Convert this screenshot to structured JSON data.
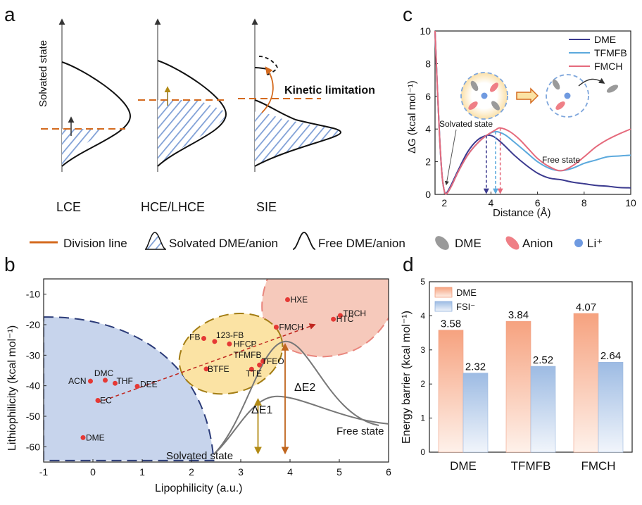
{
  "panel_labels": {
    "a": "a",
    "b": "b",
    "c": "c",
    "d": "d"
  },
  "panel_a": {
    "y_title": "Solvated state",
    "kinetic": "Kinetic limitation",
    "labels": [
      "LCE",
      "HCE/LHCE",
      "SIE"
    ]
  },
  "legend": {
    "division": "Division line",
    "solvated": "Solvated DME/anion",
    "free": "Free DME/anion",
    "dme": "DME",
    "anion": "Anion",
    "li": "Li⁺"
  },
  "colors": {
    "orange": "#d46a1e",
    "dme_line": "#3b3a8f",
    "tfmfb_line": "#5ba9dd",
    "fmch_line": "#e56a7c",
    "blue_region": "#c7d4ec",
    "yellow_region": "#fbe3a4",
    "pink_region": "#f6c9bb",
    "red_point": "#e53935"
  },
  "chart_data": [
    {
      "type": "line",
      "id": "c",
      "xlabel": "Distance (Å)",
      "ylabel": "ΔG (kcal mol⁻¹)",
      "xlim": [
        1.6,
        10
      ],
      "ylim": [
        0,
        10
      ],
      "xticks": [
        2,
        4,
        6,
        8,
        10
      ],
      "yticks": [
        0,
        2,
        4,
        6,
        8,
        10
      ],
      "annotations": {
        "solvated": "Solvated state",
        "free": "Free state"
      },
      "series": [
        {
          "name": "DME",
          "points": [
            [
              1.6,
              10
            ],
            [
              1.7,
              6.5
            ],
            [
              1.8,
              3.4
            ],
            [
              1.9,
              1.2
            ],
            [
              2.0,
              0.2
            ],
            [
              2.1,
              0.1
            ],
            [
              2.3,
              0.6
            ],
            [
              2.6,
              1.5
            ],
            [
              3.0,
              2.6
            ],
            [
              3.4,
              3.3
            ],
            [
              3.8,
              3.6
            ],
            [
              4.1,
              3.55
            ],
            [
              4.5,
              3.1
            ],
            [
              5.0,
              2.4
            ],
            [
              5.5,
              1.8
            ],
            [
              6.0,
              1.3
            ],
            [
              6.5,
              1.0
            ],
            [
              7.0,
              0.9
            ],
            [
              7.5,
              0.75
            ],
            [
              8.0,
              0.65
            ],
            [
              8.5,
              0.55
            ],
            [
              9.0,
              0.5
            ],
            [
              9.5,
              0.42
            ],
            [
              10,
              0.4
            ]
          ]
        },
        {
          "name": "TFMFB",
          "points": [
            [
              1.6,
              10
            ],
            [
              1.7,
              6.5
            ],
            [
              1.8,
              3.4
            ],
            [
              1.9,
              1.2
            ],
            [
              2.0,
              0.2
            ],
            [
              2.1,
              0.05
            ],
            [
              2.3,
              0.5
            ],
            [
              2.6,
              1.4
            ],
            [
              3.0,
              2.4
            ],
            [
              3.4,
              3.1
            ],
            [
              3.8,
              3.6
            ],
            [
              4.2,
              3.84
            ],
            [
              4.6,
              3.65
            ],
            [
              5.0,
              3.2
            ],
            [
              5.5,
              2.6
            ],
            [
              6.0,
              2.0
            ],
            [
              6.5,
              1.6
            ],
            [
              7.0,
              1.45
            ],
            [
              7.5,
              1.6
            ],
            [
              8.0,
              1.9
            ],
            [
              8.5,
              2.1
            ],
            [
              9.0,
              2.3
            ],
            [
              9.5,
              2.35
            ],
            [
              10,
              2.4
            ]
          ]
        },
        {
          "name": "FMCH",
          "points": [
            [
              1.6,
              10
            ],
            [
              1.7,
              6.5
            ],
            [
              1.8,
              3.4
            ],
            [
              1.9,
              1.2
            ],
            [
              2.0,
              0.2
            ],
            [
              2.1,
              0.05
            ],
            [
              2.3,
              0.5
            ],
            [
              2.6,
              1.4
            ],
            [
              3.0,
              2.4
            ],
            [
              3.4,
              3.1
            ],
            [
              3.8,
              3.6
            ],
            [
              4.2,
              3.95
            ],
            [
              4.4,
              4.07
            ],
            [
              4.8,
              3.85
            ],
            [
              5.2,
              3.4
            ],
            [
              5.6,
              2.8
            ],
            [
              6.0,
              2.2
            ],
            [
              6.5,
              1.7
            ],
            [
              7.0,
              1.45
            ],
            [
              7.5,
              1.75
            ],
            [
              8.0,
              2.3
            ],
            [
              8.5,
              2.9
            ],
            [
              9.0,
              3.35
            ],
            [
              9.5,
              3.7
            ],
            [
              10,
              4.0
            ]
          ]
        }
      ]
    },
    {
      "type": "scatter",
      "id": "b",
      "xlabel": "Lipophilicity (a.u.)",
      "ylabel": "Lithiophilicity (kcal mol⁻¹)",
      "xlim": [
        -1,
        6
      ],
      "ylim": [
        -65,
        -5
      ],
      "xticks": [
        -1,
        0,
        1,
        2,
        3,
        4,
        5,
        6
      ],
      "yticks": [
        -60,
        -50,
        -40,
        -30,
        -20,
        -10
      ],
      "annotations": {
        "solvated": "Solvated state",
        "free": "Free state",
        "e1": "ΔE1",
        "e2": "ΔE2"
      },
      "points": [
        {
          "name": "ACN",
          "x": -0.05,
          "y": -38.5
        },
        {
          "name": "DMC",
          "x": 0.25,
          "y": -38.2
        },
        {
          "name": "THF",
          "x": 0.45,
          "y": -39.2
        },
        {
          "name": "DEE",
          "x": 0.9,
          "y": -40.2
        },
        {
          "name": "EC",
          "x": 0.1,
          "y": -44.8
        },
        {
          "name": "DME",
          "x": -0.2,
          "y": -57
        },
        {
          "name": "FB",
          "x": 2.25,
          "y": -24.5
        },
        {
          "name": "123-FB",
          "x": 2.47,
          "y": -25.5
        },
        {
          "name": "HFCP",
          "x": 2.77,
          "y": -26.3
        },
        {
          "name": "TFMFB",
          "x": 3.45,
          "y": -32
        },
        {
          "name": "BTFE",
          "x": 2.3,
          "y": -34.5
        },
        {
          "name": "TFEO",
          "x": 3.38,
          "y": -33.2
        },
        {
          "name": "TTE",
          "x": 3.22,
          "y": -34.6
        },
        {
          "name": "HXE",
          "x": 3.95,
          "y": -11.8
        },
        {
          "name": "FMCH",
          "x": 3.72,
          "y": -20.8
        },
        {
          "name": "TBCH",
          "x": 5.02,
          "y": -17
        },
        {
          "name": "HTC",
          "x": 4.88,
          "y": -18.2
        }
      ]
    },
    {
      "type": "bar",
      "id": "d",
      "ylabel": "Energy barrier (kcal mol⁻¹)",
      "categories": [
        "DME",
        "TFMFB",
        "FMCH"
      ],
      "ylim": [
        0,
        5
      ],
      "yticks": [
        0,
        1,
        2,
        3,
        4,
        5
      ],
      "series": [
        {
          "name": "DME",
          "values": [
            3.58,
            3.84,
            4.07
          ],
          "labels": [
            "3.58",
            "3.84",
            "4.07"
          ]
        },
        {
          "name": "FSI⁻",
          "values": [
            2.32,
            2.52,
            2.64
          ],
          "labels": [
            "2.32",
            "2.52",
            "2.64"
          ]
        }
      ]
    }
  ]
}
